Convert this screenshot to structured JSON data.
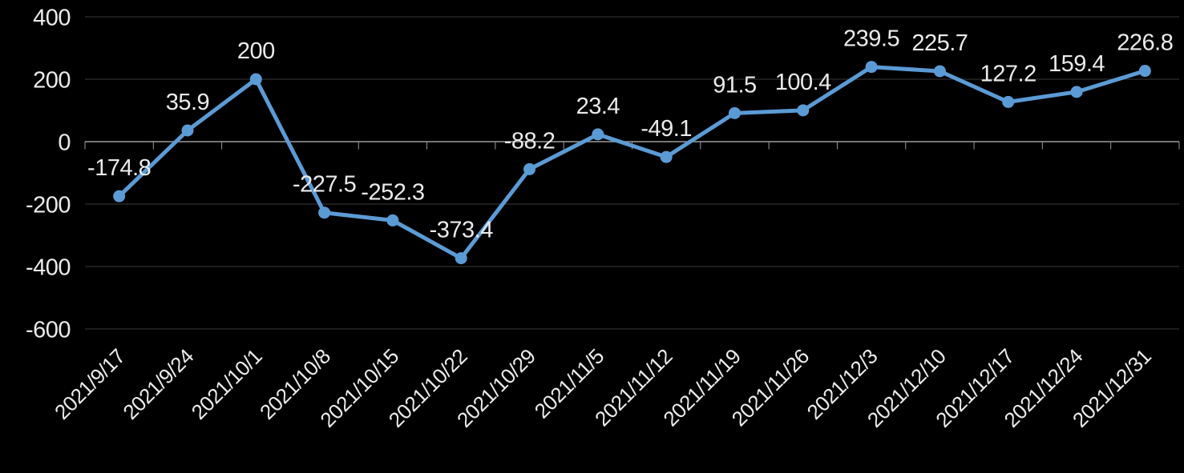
{
  "chart_data": {
    "type": "line",
    "title": "",
    "xlabel": "",
    "ylabel": "",
    "categories": [
      "2021/9/17",
      "2021/9/24",
      "2021/10/1",
      "2021/10/8",
      "2021/10/15",
      "2021/10/22",
      "2021/10/29",
      "2021/11/5",
      "2021/11/12",
      "2021/11/19",
      "2021/11/26",
      "2021/12/3",
      "2021/12/10",
      "2021/12/17",
      "2021/12/24",
      "2021/12/31"
    ],
    "series": [
      {
        "name": "series-1",
        "values": [
          -174.8,
          35.9,
          200,
          -227.5,
          -252.3,
          -373.4,
          -88.2,
          23.4,
          -49.1,
          91.5,
          100.4,
          239.5,
          225.7,
          127.2,
          159.4,
          226.8
        ],
        "data_labels": [
          "-174.8",
          "35.9",
          "200",
          "-227.5",
          "-252.3",
          "-373.4",
          "-88.2",
          "23.4",
          "-49.1",
          "91.5",
          "100.4",
          "239.5",
          "225.7",
          "127.2",
          "159.4",
          "226.8"
        ]
      }
    ],
    "ylim": [
      -600,
      400
    ],
    "y_ticks": [
      400,
      200,
      0,
      -200,
      -400,
      -600
    ],
    "y_tick_labels": [
      "400",
      "200",
      "0",
      "-200",
      "-400",
      "-600"
    ],
    "grid": true,
    "legend": "none",
    "x_label_rotation_deg": -45,
    "colors": {
      "background": "#000000",
      "series": "#5B9BD5",
      "gridline": "#3a3a3a",
      "axis": "#9a9a9a",
      "text": "#ebebeb"
    }
  }
}
